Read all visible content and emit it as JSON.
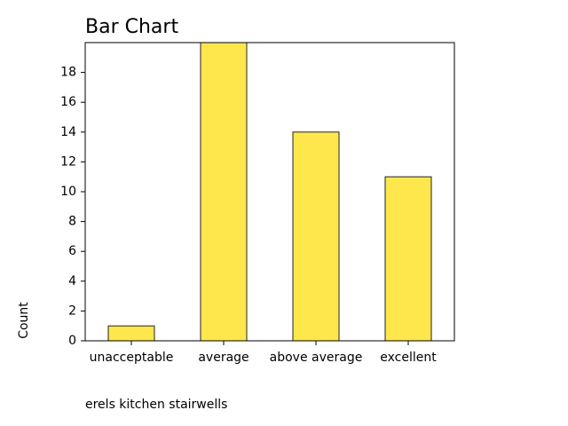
{
  "chart_data": {
    "type": "bar",
    "title": "Bar Chart",
    "y_label": "Count",
    "x_label": "erels kitchen stairwells",
    "categories": [
      "unacceptable",
      "average",
      "above average",
      "excellent"
    ],
    "values": [
      1,
      20,
      14,
      11
    ],
    "color": "#fde74c",
    "ylim": [
      0,
      20
    ],
    "yticks": [
      0,
      2,
      4,
      6,
      8,
      10,
      12,
      14,
      16,
      18
    ],
    "grid": false
  }
}
